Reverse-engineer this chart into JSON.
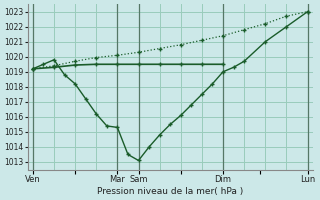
{
  "background_color": "#cce8e8",
  "grid_color": "#99ccbb",
  "line_color": "#1a5c2a",
  "xlabel": "Pression niveau de la mer( hPa )",
  "ylim": [
    1012.5,
    1023.5
  ],
  "yticks": [
    1013,
    1014,
    1015,
    1016,
    1017,
    1018,
    1019,
    1020,
    1021,
    1022,
    1023
  ],
  "xtick_labels": [
    "Ven",
    "",
    "Mar",
    "Sam",
    "",
    "Dim",
    "",
    "Lun"
  ],
  "xtick_positions": [
    0,
    8,
    16,
    20,
    28,
    36,
    43,
    52
  ],
  "vline_x": [
    0,
    16,
    20,
    36,
    52
  ],
  "line_diag_x": [
    0,
    4,
    8,
    12,
    16,
    20,
    24,
    28,
    32,
    36,
    40,
    44,
    48,
    52
  ],
  "line_diag_y": [
    1019.2,
    1019.4,
    1019.7,
    1019.95,
    1020.1,
    1020.3,
    1020.55,
    1020.8,
    1021.1,
    1021.4,
    1021.8,
    1022.2,
    1022.7,
    1023.0
  ],
  "line_flat_x": [
    0,
    4,
    8,
    12,
    16,
    20,
    24,
    28,
    32,
    36
  ],
  "line_flat_y": [
    1019.2,
    1019.3,
    1019.45,
    1019.5,
    1019.5,
    1019.5,
    1019.5,
    1019.5,
    1019.5,
    1019.5
  ],
  "line_vshaped_x": [
    0,
    2,
    4,
    6,
    8,
    10,
    12,
    14,
    16,
    18,
    20,
    22,
    24,
    26,
    28,
    30,
    32,
    34,
    36,
    38,
    40,
    44,
    48,
    52
  ],
  "line_vshaped_y": [
    1019.2,
    1019.5,
    1019.8,
    1018.8,
    1018.2,
    1017.2,
    1016.2,
    1015.4,
    1015.3,
    1013.5,
    1013.1,
    1014.0,
    1014.8,
    1015.5,
    1016.1,
    1016.8,
    1017.5,
    1018.2,
    1019.0,
    1019.3,
    1019.7,
    1021.0,
    1022.0,
    1023.0
  ]
}
